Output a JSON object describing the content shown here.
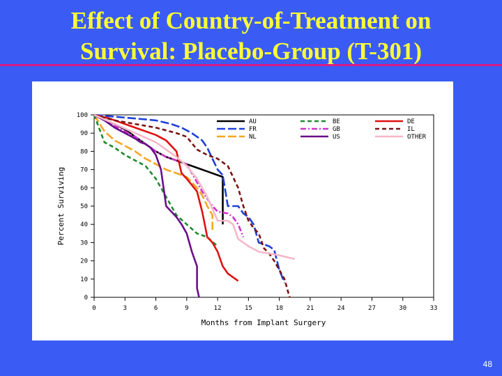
{
  "slide": {
    "title_line1": "Effect of Country-of-Treatment on",
    "title_line2": "Survival:  Placebo-Group (T-301)",
    "slide_number": "48",
    "background_color": "#3a5cf5",
    "title_color": "#ffff33",
    "rule_color": "#d81b8a"
  },
  "chart_data": {
    "type": "line",
    "title": "",
    "xlabel": "Months from Implant Surgery",
    "ylabel": "Percent Surviving",
    "xlim": [
      0,
      33
    ],
    "ylim": [
      0,
      100
    ],
    "xticks": [
      0,
      3,
      6,
      9,
      12,
      15,
      18,
      21,
      24,
      27,
      30,
      33
    ],
    "yticks": [
      0,
      10,
      20,
      30,
      40,
      50,
      60,
      70,
      80,
      90,
      100
    ],
    "grid": false,
    "legend_position": "top-right",
    "series": [
      {
        "name": "AU",
        "color": "#000000",
        "dash": "solid",
        "x": [
          0,
          1,
          2,
          3,
          4,
          5,
          6,
          7,
          8,
          9,
          10,
          11,
          12,
          12.5,
          12.5
        ],
        "y": [
          100,
          97,
          95,
          92,
          88,
          84,
          80,
          77,
          75,
          73,
          71,
          69,
          67,
          66,
          40
        ]
      },
      {
        "name": "FR",
        "color": "#1f3fd8",
        "dash": "long",
        "x": [
          0,
          2,
          4,
          6,
          7.5,
          8.5,
          9.5,
          10,
          10.5,
          11,
          11.5,
          12,
          12.5,
          13,
          14,
          14.5,
          15,
          15.5,
          16,
          17,
          17.5,
          18,
          18.5
        ],
        "y": [
          100,
          99,
          98,
          97,
          95,
          93,
          90,
          88,
          86,
          82,
          76,
          70,
          67,
          50,
          50,
          46,
          44,
          40,
          30,
          28,
          26,
          15,
          8
        ]
      },
      {
        "name": "NL",
        "color": "#f5a623",
        "dash": "long",
        "x": [
          0,
          1,
          2,
          3,
          4,
          5,
          6,
          7,
          8,
          9,
          10,
          10.5,
          11,
          11.5,
          11.5
        ],
        "y": [
          100,
          91,
          86,
          83,
          80,
          76,
          73,
          70,
          68,
          66,
          60,
          56,
          50,
          45,
          37
        ]
      },
      {
        "name": "BE",
        "color": "#1e8a2e",
        "dash": "dash",
        "x": [
          0,
          1,
          2,
          3,
          4,
          5,
          6,
          7,
          8,
          9,
          10,
          11,
          12
        ],
        "y": [
          100,
          85,
          82,
          78,
          75,
          72,
          65,
          55,
          45,
          40,
          35,
          33,
          28
        ]
      },
      {
        "name": "GB",
        "color": "#cc33cc",
        "dash": "dashdot",
        "x": [
          0,
          1,
          2,
          3,
          4,
          5,
          6,
          7,
          8,
          9,
          9.5,
          10,
          10.5,
          11,
          11.5,
          12,
          13,
          13.5,
          14,
          14.5
        ],
        "y": [
          100,
          97,
          94,
          91,
          88,
          84,
          80,
          77,
          75,
          73,
          68,
          63,
          58,
          54,
          50,
          47,
          46,
          44,
          40,
          33
        ]
      },
      {
        "name": "US",
        "color": "#6a0d8a",
        "dash": "solid",
        "x": [
          0,
          1,
          2,
          3,
          4,
          4.5,
          5,
          5.5,
          6,
          6.5,
          7,
          7.5,
          8,
          8.5,
          9,
          9.5,
          10,
          10,
          10.2
        ],
        "y": [
          100,
          97,
          93,
          90,
          87,
          85,
          84,
          82,
          78,
          70,
          50,
          47,
          44,
          40,
          35,
          25,
          17,
          5,
          0
        ]
      },
      {
        "name": "DE",
        "color": "#e01010",
        "dash": "solid",
        "x": [
          0,
          1.5,
          3,
          4.5,
          6,
          7,
          8,
          8.5,
          9,
          10,
          10.5,
          11,
          11.5,
          12,
          12.5,
          13,
          14
        ],
        "y": [
          100,
          98,
          95,
          92,
          89,
          86,
          80,
          68,
          65,
          58,
          47,
          33,
          30,
          25,
          17,
          13,
          9
        ]
      },
      {
        "name": "IL",
        "color": "#7a1414",
        "dash": "dash",
        "x": [
          0,
          2,
          4,
          6,
          8,
          9,
          10,
          11,
          12,
          13,
          13.5,
          14,
          14.5,
          15,
          15.5,
          16,
          16.5,
          17,
          17.5,
          18,
          18.5,
          19
        ],
        "y": [
          100,
          97,
          95,
          93,
          90,
          88,
          81,
          78,
          76,
          72,
          66,
          60,
          50,
          42,
          38,
          35,
          27,
          24,
          20,
          15,
          10,
          0
        ]
      },
      {
        "name": "OTHER",
        "color": "#f5b8c8",
        "dash": "solid",
        "x": [
          0,
          2,
          4,
          6,
          8,
          9,
          10,
          11,
          12,
          13,
          13.5,
          14,
          15,
          16,
          17,
          18,
          19.5
        ],
        "y": [
          100,
          95,
          90,
          85,
          77,
          72,
          65,
          55,
          42,
          42,
          40,
          32,
          28,
          25,
          24,
          23,
          21
        ]
      }
    ]
  }
}
